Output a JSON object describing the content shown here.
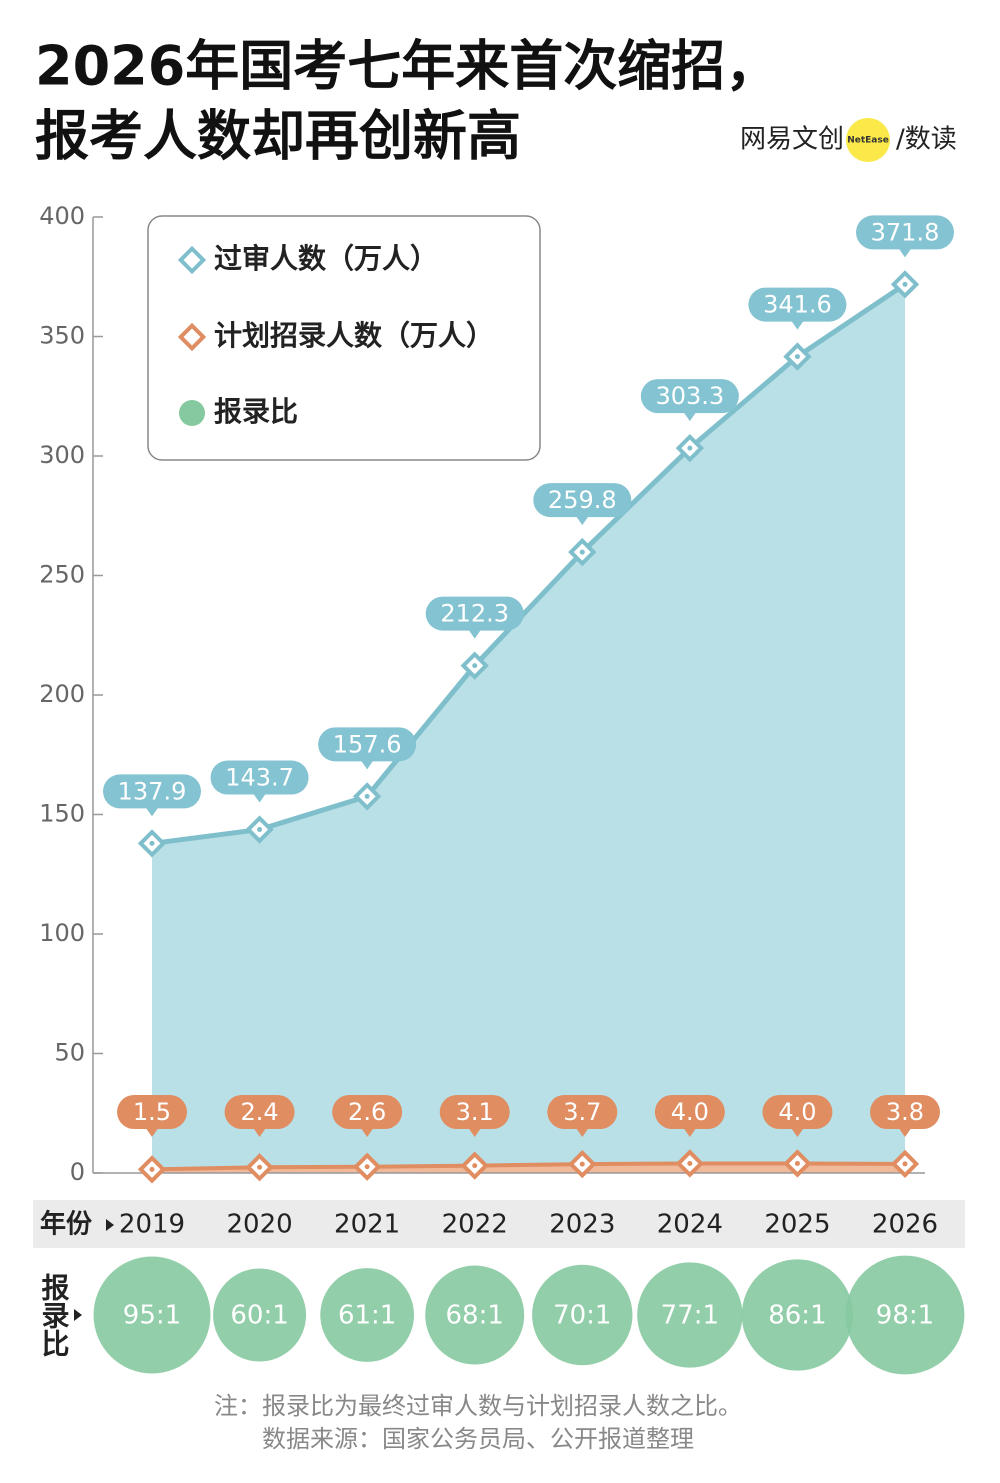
{
  "header": {
    "title_lines": [
      "2026年国考七年来首次缩招，",
      "报考人数却再创新高"
    ],
    "brand": "网易文创",
    "brand_badge": "NetEase",
    "brand_suffix": "/数读"
  },
  "chart_data": {
    "type": "area",
    "categories": [
      "2019",
      "2020",
      "2021",
      "2022",
      "2023",
      "2024",
      "2025",
      "2026"
    ],
    "x_label": "年份",
    "series": [
      {
        "name": "过审人数（万人）",
        "color": "#7fbfcc",
        "values": [
          137.9,
          143.7,
          157.6,
          212.3,
          259.8,
          303.3,
          341.6,
          371.8
        ]
      },
      {
        "name": "计划招录人数（万人）",
        "color": "#e08d62",
        "values": [
          1.5,
          2.4,
          2.6,
          3.1,
          3.7,
          4.0,
          4.0,
          3.8
        ],
        "value_labels": [
          "1.5",
          "2.4",
          "2.6",
          "3.1",
          "3.7",
          "4.0",
          "4.0",
          "3.8"
        ]
      },
      {
        "name": "报录比",
        "color": "#86c9a0",
        "values": [
          95,
          60,
          61,
          68,
          70,
          77,
          86,
          98
        ],
        "value_labels": [
          "95:1",
          "60:1",
          "61:1",
          "68:1",
          "70:1",
          "77:1",
          "86:1",
          "98:1"
        ]
      }
    ],
    "ylim": [
      0,
      400
    ],
    "yticks": [
      0,
      50,
      100,
      150,
      200,
      250,
      300,
      350,
      400
    ]
  },
  "footer": {
    "notes": [
      "注：报录比为最终过审人数与计划招录人数之比。",
      "数据来源：国家公务员局、公开报道整理"
    ]
  }
}
